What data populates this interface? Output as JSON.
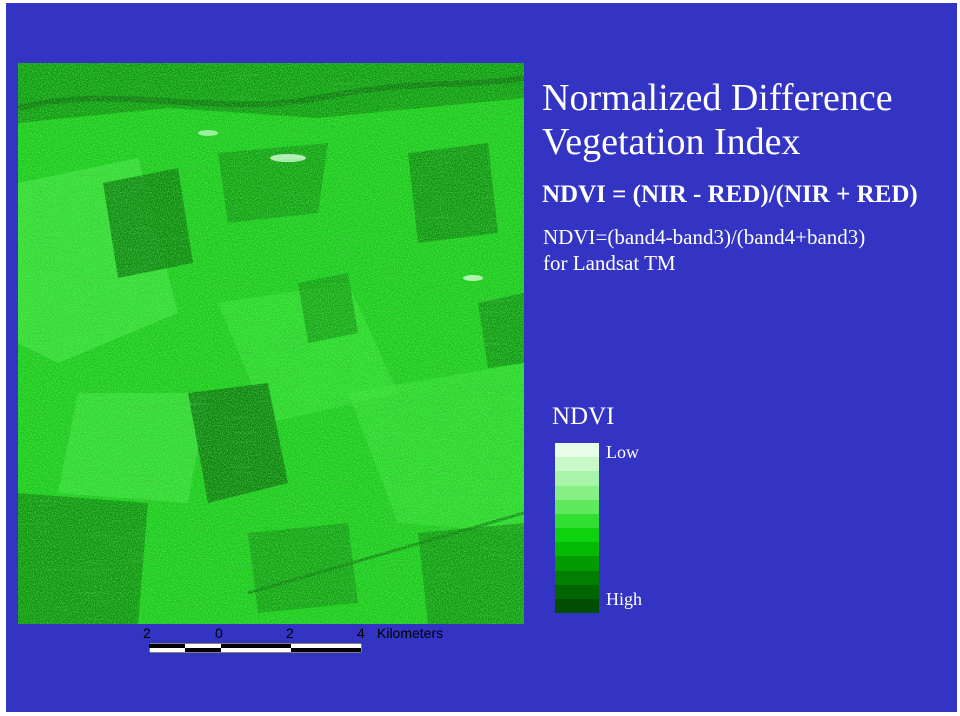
{
  "slide": {
    "title": "Normalized Difference\nVegetation Index",
    "formula": "NDVI = (NIR - RED)/(NIR + RED)",
    "landsat_formula": "NDVI=(band4-band3)/(band4+band3)",
    "landsat_note": "for Landsat TM"
  },
  "legend": {
    "title": "NDVI",
    "low_label": "Low",
    "high_label": "High",
    "colors": [
      "#e6ffe6",
      "#c9f9c9",
      "#a8f4a8",
      "#86ef86",
      "#5fe95f",
      "#30e030",
      "#0ed20e",
      "#04b904",
      "#029c02",
      "#017f01",
      "#016501",
      "#014d01"
    ]
  },
  "scalebar": {
    "labels": [
      "2",
      "0",
      "2",
      "4"
    ],
    "unit": "Kilometers"
  },
  "colors": {
    "background": "#3434c4",
    "text": "#ffffff"
  }
}
